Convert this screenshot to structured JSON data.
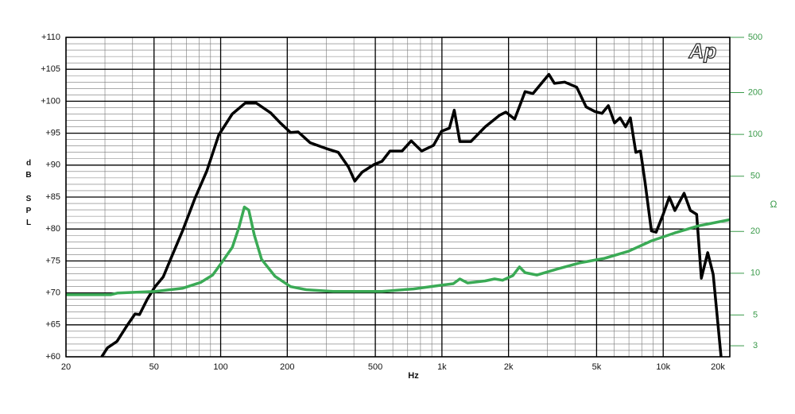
{
  "chart_data": {
    "type": "line",
    "logo": "Ap",
    "x_label": "Hz",
    "y_label": "dB SPL",
    "y2_label": "Ω",
    "xlim": [
      20,
      20000
    ],
    "xlog": true,
    "xticks": [
      20,
      50,
      100,
      200,
      500,
      {
        "value": 1000,
        "label": "1k"
      },
      {
        "value": 2000,
        "label": "2k"
      },
      {
        "value": 5000,
        "label": "5k"
      },
      {
        "value": 10000,
        "label": "10k"
      },
      {
        "value": 20000,
        "label": "20k"
      }
    ],
    "ylim": [
      60,
      110
    ],
    "yticks": [
      {
        "value": 60,
        "label": "+60"
      },
      {
        "value": 65,
        "label": "+65"
      },
      {
        "value": 70,
        "label": "+70"
      },
      {
        "value": 75,
        "label": "+75"
      },
      {
        "value": 80,
        "label": "+80"
      },
      {
        "value": 85,
        "label": "+85"
      },
      {
        "value": 90,
        "label": "+90"
      },
      {
        "value": 95,
        "label": "+95"
      },
      {
        "value": 100,
        "label": "+100"
      },
      {
        "value": 105,
        "label": "+105"
      },
      {
        "value": 110,
        "label": "+110"
      }
    ],
    "y2lim": [
      2.5,
      500
    ],
    "y2log": true,
    "y2ticks": [
      3,
      5,
      10,
      20,
      50,
      100,
      200,
      500
    ],
    "grid": true,
    "series": [
      {
        "color": "#000000",
        "x": [
          29,
          30.8,
          34,
          37.8,
          41,
          43,
          46.6,
          50.6,
          55,
          59.6,
          67.4,
          76.5,
          86.6,
          98,
          112.8,
          129,
          145,
          168,
          186,
          207,
          224,
          254,
          300,
          340,
          378,
          404,
          436,
          494,
          536,
          582,
          660,
          727,
          810,
          916,
          995,
          1081,
          1137,
          1205,
          1352,
          1568,
          1820,
          1945,
          2132,
          2376,
          2580,
          3044,
          3224,
          3589,
          4064,
          4487,
          4910,
          5287,
          5648,
          6029,
          6387,
          6763,
          7103,
          7521,
          7896,
          8290,
          8846,
          9289,
          9995,
          10660,
          11290,
          12430,
          13270,
          14160,
          14870,
          15890,
          16830,
          18260
        ],
        "values": [
          60,
          61.4,
          62.4,
          64.9,
          66.7,
          66.6,
          69,
          71,
          72.5,
          75.4,
          79.8,
          84.8,
          89.1,
          94.7,
          98,
          99.7,
          99.7,
          98.2,
          96.6,
          95.1,
          95.2,
          93.5,
          92.6,
          92,
          89.7,
          87.5,
          88.9,
          90.1,
          90.6,
          92.2,
          92.2,
          93.8,
          92.2,
          93.1,
          95.3,
          95.8,
          98.6,
          93.7,
          93.7,
          96,
          97.8,
          98.3,
          97.2,
          101.5,
          101.2,
          104.2,
          102.8,
          103,
          102.2,
          99.1,
          98.4,
          98.1,
          99.3,
          96.6,
          97.4,
          96,
          97.4,
          92,
          92.2,
          87.2,
          79.7,
          79.5,
          82.3,
          85,
          82.9,
          85.6,
          82.9,
          82.3,
          72.3,
          76.3,
          72.9,
          60
        ]
      },
      {
        "color": "#3aaa55",
        "axis": "y2",
        "x": [
          20,
          31.8,
          34.3,
          50.6,
          67.4,
          81.4,
          92,
          101,
          113,
          121,
          128,
          134,
          142,
          153,
          176,
          207,
          244,
          322,
          536,
          744,
          995,
          1126,
          1205,
          1305,
          1568,
          1730,
          1880,
          2090,
          2240,
          2376,
          2690,
          3306,
          4230,
          5430,
          6970,
          8846,
          11290,
          14390,
          20000
        ],
        "values": [
          7.0,
          7.0,
          7.2,
          7.4,
          7.8,
          8.6,
          9.7,
          11.9,
          15.4,
          21.4,
          30,
          28.5,
          18.8,
          12.6,
          9.5,
          8,
          7.6,
          7.4,
          7.4,
          7.7,
          8.2,
          8.4,
          9.1,
          8.5,
          8.8,
          9.1,
          8.9,
          9.6,
          11.1,
          10.1,
          9.7,
          10.7,
          11.9,
          12.8,
          14.4,
          17.1,
          19.5,
          21.9,
          24.3
        ]
      }
    ]
  }
}
